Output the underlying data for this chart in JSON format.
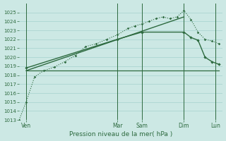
{
  "bg_color": "#cce8e4",
  "grid_color": "#b0d8d4",
  "line_color": "#2d6a3f",
  "xlabel": "Pression niveau de la mer( hPa )",
  "ylim": [
    1013,
    1026
  ],
  "yticks": [
    1013,
    1014,
    1015,
    1016,
    1017,
    1018,
    1019,
    1020,
    1021,
    1022,
    1023,
    1024,
    1025
  ],
  "x_day_positions": [
    30,
    160,
    195,
    255,
    300
  ],
  "x_day_labels": [
    "Ven",
    "Mar",
    "Sam",
    "Dim",
    "Lun"
  ],
  "vline_positions": [
    30,
    160,
    195,
    255,
    300
  ],
  "xlim": [
    20,
    310
  ],
  "series1_x": [
    20,
    30,
    42,
    55,
    70,
    85,
    100,
    115,
    130,
    145,
    160,
    175,
    185,
    195,
    205,
    215,
    225,
    235,
    245,
    255,
    265,
    275,
    285,
    295,
    305
  ],
  "series1_y": [
    1013.0,
    1015.0,
    1017.8,
    1018.5,
    1018.9,
    1019.5,
    1020.2,
    1021.2,
    1021.5,
    1022.0,
    1022.5,
    1023.2,
    1023.5,
    1023.7,
    1024.0,
    1024.3,
    1024.5,
    1024.3,
    1024.5,
    1025.2,
    1024.2,
    1022.8,
    1022.0,
    1021.8,
    1021.5
  ],
  "series2_x": [
    30,
    255
  ],
  "series2_y": [
    1018.5,
    1024.5
  ],
  "series3_x": [
    30,
    160,
    195,
    255,
    265,
    275,
    285,
    295,
    305
  ],
  "series3_y": [
    1018.8,
    1022.0,
    1022.8,
    1022.8,
    1022.2,
    1021.9,
    1020.0,
    1019.5,
    1019.2
  ],
  "series4_x": [
    30,
    255,
    305
  ],
  "series4_y": [
    1018.5,
    1018.5,
    1018.5
  ]
}
